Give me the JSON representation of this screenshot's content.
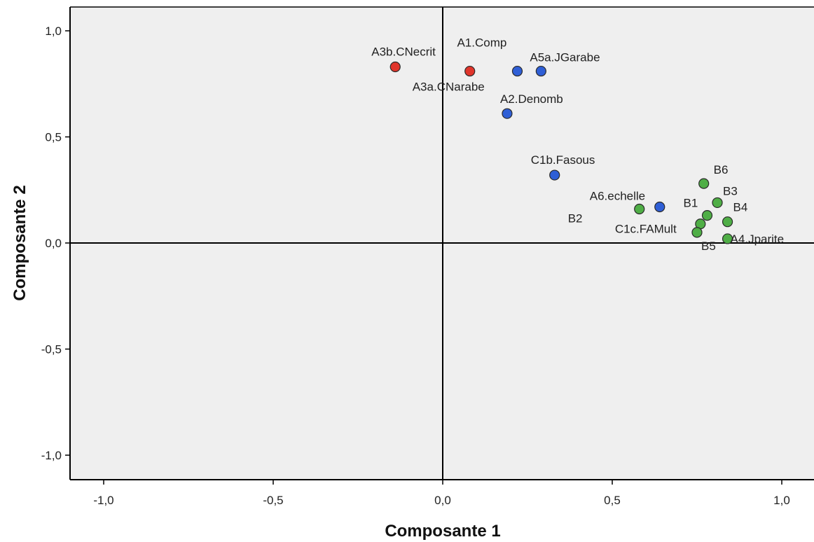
{
  "chart_data": {
    "type": "scatter",
    "title": "",
    "xlabel": "Composante 1",
    "ylabel": "Composante 2",
    "xlim": [
      -1.1,
      1.1
    ],
    "ylim": [
      -1.1,
      1.1
    ],
    "x_ticks": [
      -1.0,
      -0.5,
      0.0,
      0.5,
      1.0
    ],
    "x_tick_labels": [
      "-1,0",
      "-0,5",
      "0,0",
      "0,5",
      "1,0"
    ],
    "y_ticks": [
      1.0,
      0.5,
      0.0,
      -0.5,
      -1.0
    ],
    "y_tick_labels": [
      "1,0",
      "0,5",
      "0,0",
      "-0,5",
      "-1,0"
    ],
    "grid": false,
    "reference_lines": {
      "x": 0,
      "y": 0
    },
    "colors": {
      "red": "#e0352b",
      "blue": "#2f5fd6",
      "green": "#4fae46",
      "plot_bg": "#efefef"
    },
    "points": [
      {
        "label": "A3b.CNecrit",
        "x": -0.14,
        "y": 0.83,
        "color": "red"
      },
      {
        "label": "A3a.CNarabe",
        "x": 0.08,
        "y": 0.81,
        "color": "red"
      },
      {
        "label": "A1.Comp",
        "x": 0.22,
        "y": 0.81,
        "color": "blue"
      },
      {
        "label": "A5a.JGarabe",
        "x": 0.29,
        "y": 0.81,
        "color": "blue"
      },
      {
        "label": "A2.Denomb",
        "x": 0.19,
        "y": 0.61,
        "color": "blue"
      },
      {
        "label": "C1b.Fasous",
        "x": 0.33,
        "y": 0.32,
        "color": "blue"
      },
      {
        "label": "A6.echelle",
        "x": 0.64,
        "y": 0.17,
        "color": "blue"
      },
      {
        "label": "B2",
        "x": 0.58,
        "y": 0.16,
        "color": "green"
      },
      {
        "label": "B6",
        "x": 0.77,
        "y": 0.28,
        "color": "green"
      },
      {
        "label": "B3",
        "x": 0.81,
        "y": 0.19,
        "color": "green"
      },
      {
        "label": "B1",
        "x": 0.78,
        "y": 0.13,
        "color": "green"
      },
      {
        "label": "B4",
        "x": 0.84,
        "y": 0.1,
        "color": "green"
      },
      {
        "label": "C1c.FAMult",
        "x": 0.76,
        "y": 0.09,
        "color": "green"
      },
      {
        "label": "B5",
        "x": 0.75,
        "y": 0.05,
        "color": "green"
      },
      {
        "label": "A4.Jparite",
        "x": 0.84,
        "y": 0.02,
        "color": "green"
      }
    ]
  }
}
